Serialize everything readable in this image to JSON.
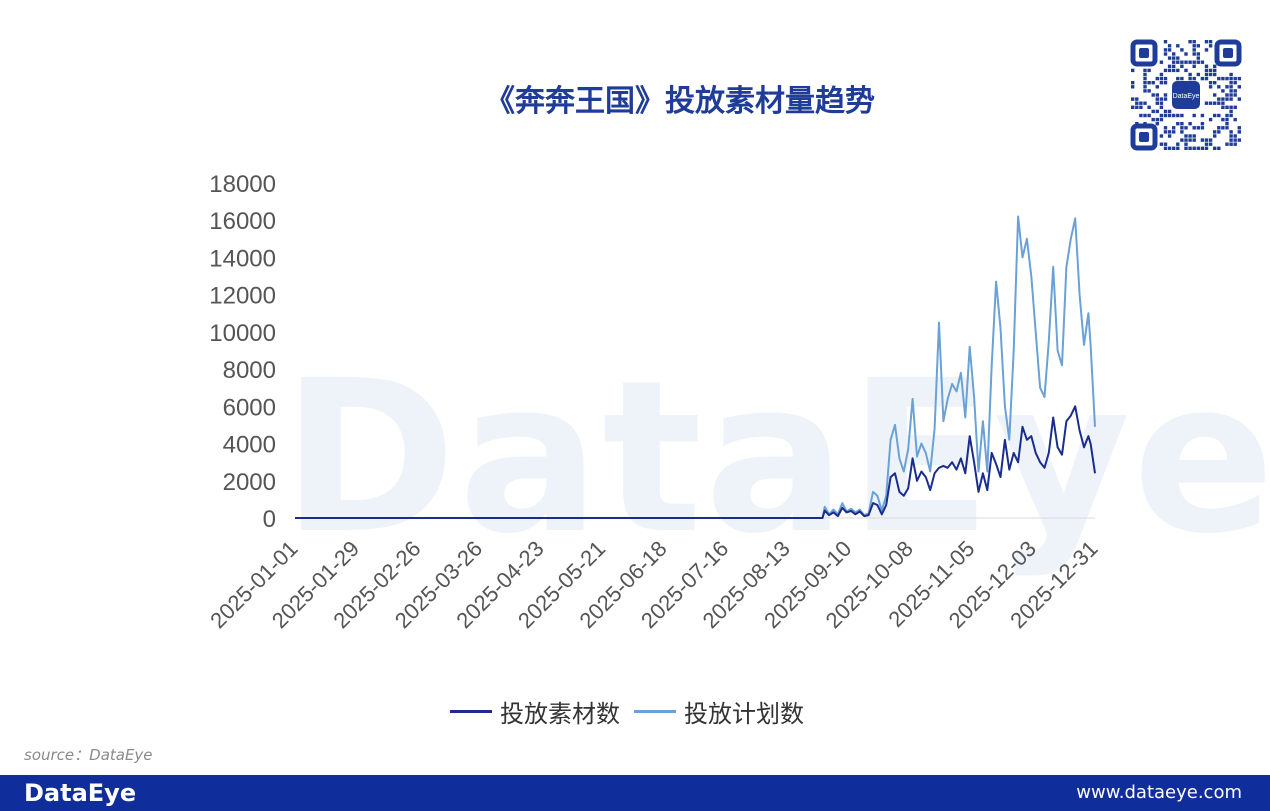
{
  "colors": {
    "title": "#1f3d98",
    "series_dark": "#1a2d8f",
    "series_light": "#6aa1d6",
    "footer_bg": "#0f2e9c",
    "watermark": "#eef3fa"
  },
  "title": "《奔奔王国》投放素材量趋势",
  "watermark_text": "DataEye",
  "qr_center_label": "DataEye",
  "source": "source：DataEye",
  "footer": {
    "logo": "DataEye",
    "url": "www.dataeye.com"
  },
  "legend": [
    {
      "name": "投放素材数",
      "color": "#1a2d8f"
    },
    {
      "name": "投放计划数",
      "color": "#6aa1d6"
    }
  ],
  "chart_data": {
    "type": "line",
    "title": "《奔奔王国》投放素材量趋势",
    "xlabel": "",
    "ylabel": "",
    "x_range": [
      "2025-01-01",
      "2025-12-31"
    ],
    "x_ticks": [
      "2025-01-01",
      "2025-01-29",
      "2025-02-26",
      "2025-03-26",
      "2025-04-23",
      "2025-05-21",
      "2025-06-18",
      "2025-07-16",
      "2025-08-13",
      "2025-09-10",
      "2025-10-08",
      "2025-11-05",
      "2025-12-03",
      "2025-12-31"
    ],
    "y_ticks": [
      0,
      2000,
      4000,
      6000,
      8000,
      10000,
      12000,
      14000,
      16000,
      18000
    ],
    "ylim": [
      0,
      18000
    ],
    "grid": false,
    "legend_position": "bottom",
    "series": [
      {
        "name": "投放素材数",
        "points": [
          [
            "2025-01-01",
            0
          ],
          [
            "2025-08-29",
            0
          ],
          [
            "2025-08-30",
            400
          ],
          [
            "2025-09-01",
            150
          ],
          [
            "2025-09-03",
            300
          ],
          [
            "2025-09-05",
            100
          ],
          [
            "2025-09-07",
            550
          ],
          [
            "2025-09-09",
            300
          ],
          [
            "2025-09-11",
            380
          ],
          [
            "2025-09-13",
            200
          ],
          [
            "2025-09-15",
            350
          ],
          [
            "2025-09-17",
            100
          ],
          [
            "2025-09-19",
            150
          ],
          [
            "2025-09-21",
            800
          ],
          [
            "2025-09-23",
            700
          ],
          [
            "2025-09-25",
            200
          ],
          [
            "2025-09-27",
            700
          ],
          [
            "2025-09-29",
            2200
          ],
          [
            "2025-10-01",
            2400
          ],
          [
            "2025-10-03",
            1400
          ],
          [
            "2025-10-05",
            1200
          ],
          [
            "2025-10-07",
            1600
          ],
          [
            "2025-10-09",
            3200
          ],
          [
            "2025-10-11",
            2000
          ],
          [
            "2025-10-13",
            2500
          ],
          [
            "2025-10-15",
            2200
          ],
          [
            "2025-10-17",
            1500
          ],
          [
            "2025-10-19",
            2400
          ],
          [
            "2025-10-21",
            2700
          ],
          [
            "2025-10-23",
            2800
          ],
          [
            "2025-10-25",
            2700
          ],
          [
            "2025-10-27",
            3000
          ],
          [
            "2025-10-29",
            2600
          ],
          [
            "2025-10-31",
            3200
          ],
          [
            "2025-11-02",
            2400
          ],
          [
            "2025-11-04",
            4400
          ],
          [
            "2025-11-06",
            3000
          ],
          [
            "2025-11-08",
            1400
          ],
          [
            "2025-11-10",
            2400
          ],
          [
            "2025-11-12",
            1500
          ],
          [
            "2025-11-14",
            3500
          ],
          [
            "2025-11-16",
            2900
          ],
          [
            "2025-11-18",
            2200
          ],
          [
            "2025-11-20",
            4200
          ],
          [
            "2025-11-22",
            2600
          ],
          [
            "2025-11-24",
            3500
          ],
          [
            "2025-11-26",
            3000
          ],
          [
            "2025-11-28",
            4900
          ],
          [
            "2025-11-30",
            4200
          ],
          [
            "2025-12-02",
            4400
          ],
          [
            "2025-12-04",
            3500
          ],
          [
            "2025-12-06",
            3000
          ],
          [
            "2025-12-08",
            2700
          ],
          [
            "2025-12-10",
            3500
          ],
          [
            "2025-12-12",
            5400
          ],
          [
            "2025-12-14",
            3800
          ],
          [
            "2025-12-16",
            3400
          ],
          [
            "2025-12-18",
            5200
          ],
          [
            "2025-12-20",
            5500
          ],
          [
            "2025-12-22",
            6000
          ],
          [
            "2025-12-24",
            4700
          ],
          [
            "2025-12-26",
            3800
          ],
          [
            "2025-12-28",
            4400
          ],
          [
            "2025-12-29",
            4000
          ],
          [
            "2025-12-31",
            2400
          ]
        ]
      },
      {
        "name": "投放计划数",
        "points": [
          [
            "2025-01-01",
            0
          ],
          [
            "2025-08-29",
            0
          ],
          [
            "2025-08-30",
            600
          ],
          [
            "2025-09-01",
            200
          ],
          [
            "2025-09-03",
            450
          ],
          [
            "2025-09-05",
            200
          ],
          [
            "2025-09-07",
            800
          ],
          [
            "2025-09-09",
            350
          ],
          [
            "2025-09-11",
            500
          ],
          [
            "2025-09-13",
            300
          ],
          [
            "2025-09-15",
            450
          ],
          [
            "2025-09-17",
            150
          ],
          [
            "2025-09-19",
            250
          ],
          [
            "2025-09-21",
            1400
          ],
          [
            "2025-09-23",
            1200
          ],
          [
            "2025-09-25",
            400
          ],
          [
            "2025-09-27",
            1200
          ],
          [
            "2025-09-29",
            4200
          ],
          [
            "2025-10-01",
            5000
          ],
          [
            "2025-10-03",
            3200
          ],
          [
            "2025-10-05",
            2500
          ],
          [
            "2025-10-07",
            3700
          ],
          [
            "2025-10-09",
            6400
          ],
          [
            "2025-10-11",
            3300
          ],
          [
            "2025-10-13",
            4000
          ],
          [
            "2025-10-15",
            3500
          ],
          [
            "2025-10-17",
            2500
          ],
          [
            "2025-10-19",
            4800
          ],
          [
            "2025-10-21",
            10500
          ],
          [
            "2025-10-23",
            5200
          ],
          [
            "2025-10-25",
            6400
          ],
          [
            "2025-10-27",
            7200
          ],
          [
            "2025-10-29",
            6800
          ],
          [
            "2025-10-31",
            7800
          ],
          [
            "2025-11-02",
            5400
          ],
          [
            "2025-11-04",
            9200
          ],
          [
            "2025-11-06",
            6500
          ],
          [
            "2025-11-08",
            2500
          ],
          [
            "2025-11-10",
            5200
          ],
          [
            "2025-11-12",
            2500
          ],
          [
            "2025-11-14",
            8200
          ],
          [
            "2025-11-16",
            12700
          ],
          [
            "2025-11-18",
            10200
          ],
          [
            "2025-11-20",
            6000
          ],
          [
            "2025-11-22",
            4200
          ],
          [
            "2025-11-24",
            9000
          ],
          [
            "2025-11-26",
            16200
          ],
          [
            "2025-11-28",
            14000
          ],
          [
            "2025-11-30",
            15000
          ],
          [
            "2025-12-02",
            13000
          ],
          [
            "2025-12-04",
            10000
          ],
          [
            "2025-12-06",
            7000
          ],
          [
            "2025-12-08",
            6500
          ],
          [
            "2025-12-10",
            9500
          ],
          [
            "2025-12-12",
            13500
          ],
          [
            "2025-12-14",
            9000
          ],
          [
            "2025-12-16",
            8200
          ],
          [
            "2025-12-18",
            13500
          ],
          [
            "2025-12-20",
            15000
          ],
          [
            "2025-12-22",
            16100
          ],
          [
            "2025-12-24",
            12000
          ],
          [
            "2025-12-26",
            9300
          ],
          [
            "2025-12-28",
            11000
          ],
          [
            "2025-12-29",
            9300
          ],
          [
            "2025-12-31",
            4900
          ]
        ]
      }
    ]
  }
}
